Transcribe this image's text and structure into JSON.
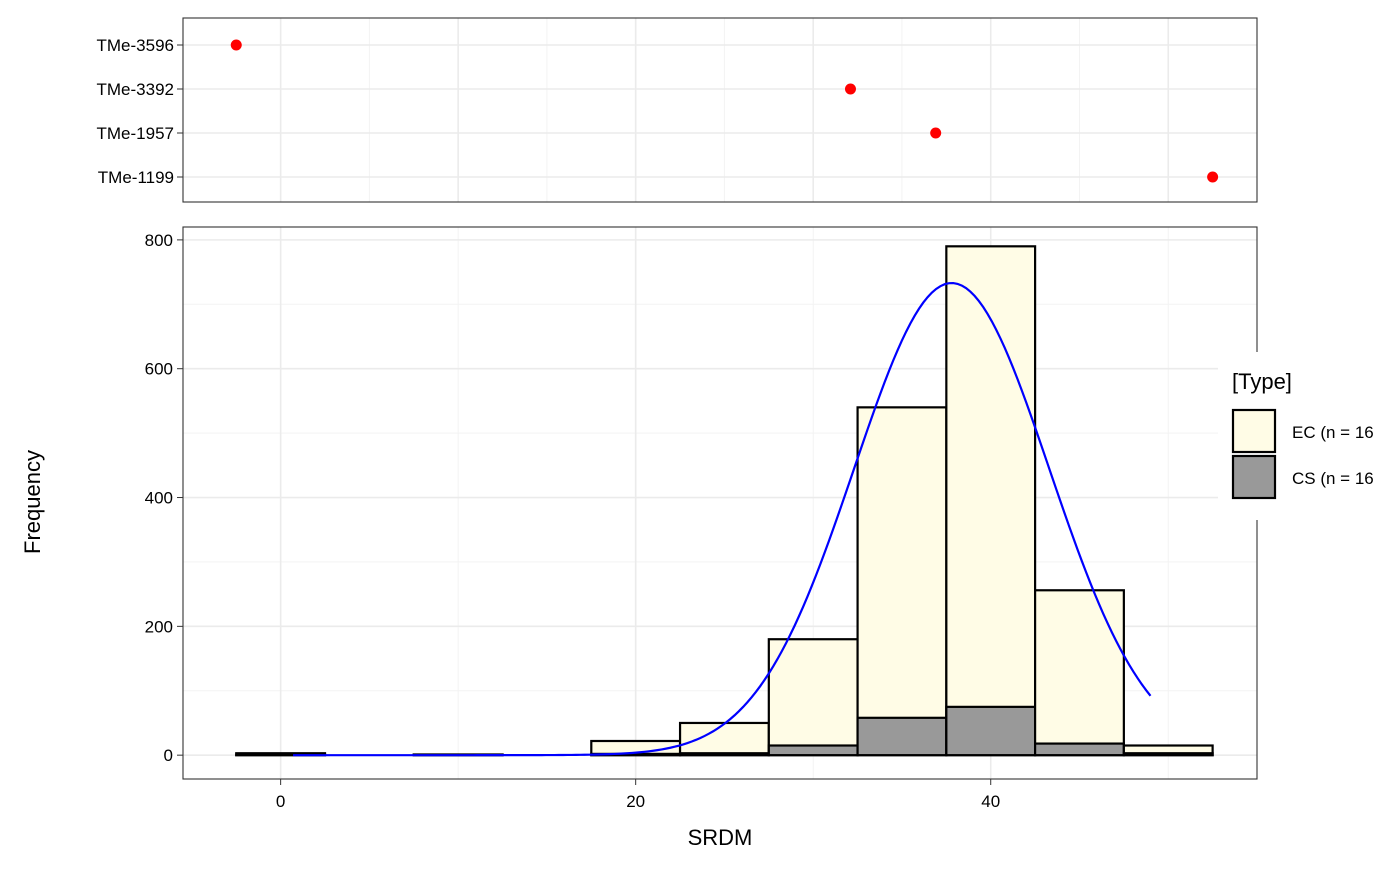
{
  "colors": {
    "background": "#ffffff",
    "grid_major": "#ebebeb",
    "grid_minor": "#f3f3f3",
    "panel_border": "#333333",
    "ec_fill": "#fffce6",
    "cs_fill": "#999999",
    "bar_stroke": "#000000",
    "density_line": "#0000ff",
    "dot": "#ff0000"
  },
  "chart_data": [
    {
      "type": "scatter",
      "panel": "top",
      "x_range": [
        -5.5,
        55
      ],
      "categories": [
        "TMe-3596",
        "TMe-3392",
        "TMe-1957",
        "TMe-1199"
      ],
      "points": [
        {
          "label": "TMe-3596",
          "x": -2.5
        },
        {
          "label": "TMe-3392",
          "x": 32.1
        },
        {
          "label": "TMe-1957",
          "x": 36.9
        },
        {
          "label": "TMe-1199",
          "x": 52.5
        }
      ],
      "grid": true
    },
    {
      "type": "bar",
      "stacked": true,
      "panel": "bottom",
      "xlabel": "SRDM",
      "ylabel": "Frequency",
      "x_ticks": [
        0,
        20,
        40
      ],
      "y_ticks": [
        0,
        200,
        400,
        600,
        800
      ],
      "xlim": [
        -5.5,
        55
      ],
      "ylim": [
        -37,
        820
      ],
      "grid": true,
      "bins": [
        {
          "x0": -2.5,
          "x1": 2.5,
          "ec": 2,
          "cs": 1
        },
        {
          "x0": 2.5,
          "x1": 7.5,
          "ec": 0,
          "cs": 0
        },
        {
          "x0": 7.5,
          "x1": 12.5,
          "ec": 0,
          "cs": 1
        },
        {
          "x0": 12.5,
          "x1": 17.5,
          "ec": 0,
          "cs": 0
        },
        {
          "x0": 17.5,
          "x1": 22.5,
          "ec": 20,
          "cs": 2
        },
        {
          "x0": 22.5,
          "x1": 27.5,
          "ec": 47,
          "cs": 3
        },
        {
          "x0": 27.5,
          "x1": 32.5,
          "ec": 165,
          "cs": 15
        },
        {
          "x0": 32.5,
          "x1": 37.5,
          "ec": 482,
          "cs": 58
        },
        {
          "x0": 37.5,
          "x1": 42.5,
          "ec": 715,
          "cs": 75
        },
        {
          "x0": 42.5,
          "x1": 47.5,
          "ec": 238,
          "cs": 18
        },
        {
          "x0": 47.5,
          "x1": 52.5,
          "ec": 12,
          "cs": 3
        }
      ],
      "density_curve": {
        "type": "normal",
        "mean": 37.8,
        "sd": 5.5,
        "peak": 733,
        "x_from": 0.7,
        "x_to": 49.0
      },
      "legend": {
        "title": "[Type]",
        "placement": "right",
        "entries": [
          "EC (n = 16",
          "CS (n = 16"
        ]
      }
    }
  ]
}
